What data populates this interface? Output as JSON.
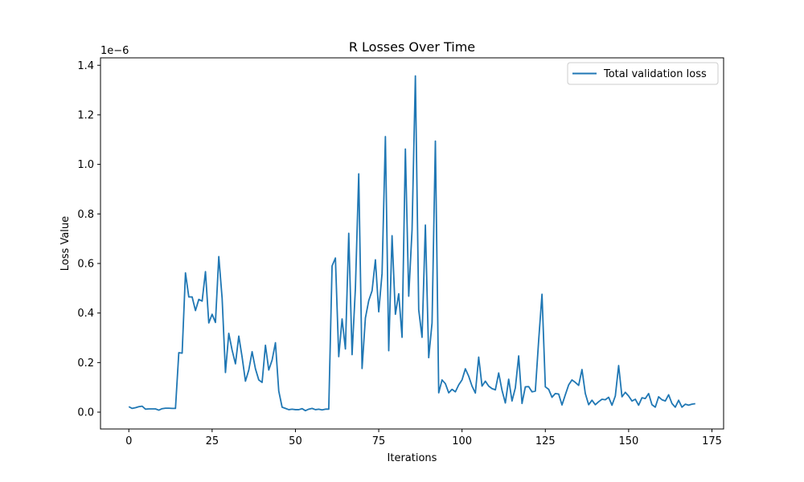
{
  "chart_data": {
    "type": "line",
    "title": "R Losses Over Time",
    "xlabel": "Iterations",
    "ylabel": "Loss Value",
    "y_offset_text": "1e−6",
    "xlim": [
      -8.5,
      178.5
    ],
    "ylim": [
      -0.068,
      1.43
    ],
    "xticks": [
      0,
      25,
      50,
      75,
      100,
      125,
      150,
      175
    ],
    "xtick_labels": [
      "0",
      "25",
      "50",
      "75",
      "100",
      "125",
      "150",
      "175"
    ],
    "yticks": [
      0.0,
      0.2,
      0.4,
      0.6,
      0.8,
      1.0,
      1.2,
      1.4
    ],
    "ytick_labels": [
      "0.0",
      "0.2",
      "0.4",
      "0.6",
      "0.8",
      "1.0",
      "1.2",
      "1.4"
    ],
    "grid": false,
    "legend_position": "top-right",
    "series": [
      {
        "name": "Total validation loss",
        "color": "#1f77b4",
        "x": [
          0,
          1,
          2,
          3,
          4,
          5,
          6,
          7,
          8,
          9,
          10,
          11,
          12,
          13,
          14,
          15,
          16,
          17,
          18,
          19,
          20,
          21,
          22,
          23,
          24,
          25,
          26,
          27,
          28,
          29,
          30,
          31,
          32,
          33,
          34,
          35,
          36,
          37,
          38,
          39,
          40,
          41,
          42,
          43,
          44,
          45,
          46,
          47,
          48,
          49,
          50,
          51,
          52,
          53,
          54,
          55,
          56,
          57,
          58,
          59,
          60,
          61,
          62,
          63,
          64,
          65,
          66,
          67,
          68,
          69,
          70,
          71,
          72,
          73,
          74,
          75,
          76,
          77,
          78,
          79,
          80,
          81,
          82,
          83,
          84,
          85,
          86,
          87,
          88,
          89,
          90,
          91,
          92,
          93,
          94,
          95,
          96,
          97,
          98,
          99,
          100,
          101,
          102,
          103,
          104,
          105,
          106,
          107,
          108,
          109,
          110,
          111,
          112,
          113,
          114,
          115,
          116,
          117,
          118,
          119,
          120,
          121,
          122,
          123,
          124,
          125,
          126,
          127,
          128,
          129,
          130,
          131,
          132,
          133,
          134,
          135,
          136,
          137,
          138,
          139,
          140,
          141,
          142,
          143,
          144,
          145,
          146,
          147,
          148,
          149,
          150,
          151,
          152,
          153,
          154,
          155,
          156,
          157,
          158,
          159,
          160,
          161,
          162,
          163,
          164,
          165,
          166,
          167,
          168,
          169,
          170
        ],
        "values": [
          0.022,
          0.015,
          0.018,
          0.022,
          0.024,
          0.012,
          0.013,
          0.013,
          0.013,
          0.008,
          0.014,
          0.016,
          0.016,
          0.015,
          0.015,
          0.24,
          0.238,
          0.562,
          0.465,
          0.465,
          0.41,
          0.455,
          0.448,
          0.567,
          0.36,
          0.395,
          0.362,
          0.628,
          0.46,
          0.16,
          0.318,
          0.25,
          0.195,
          0.307,
          0.222,
          0.125,
          0.17,
          0.244,
          0.175,
          0.13,
          0.12,
          0.27,
          0.17,
          0.21,
          0.28,
          0.085,
          0.02,
          0.015,
          0.01,
          0.012,
          0.01,
          0.01,
          0.014,
          0.006,
          0.012,
          0.015,
          0.01,
          0.012,
          0.009,
          0.012,
          0.012,
          0.59,
          0.622,
          0.224,
          0.376,
          0.255,
          0.722,
          0.232,
          0.5,
          0.962,
          0.176,
          0.38,
          0.45,
          0.49,
          0.615,
          0.405,
          0.56,
          1.112,
          0.248,
          0.712,
          0.395,
          0.478,
          0.302,
          1.062,
          0.468,
          0.735,
          1.357,
          0.413,
          0.302,
          0.755,
          0.22,
          0.36,
          1.094,
          0.078,
          0.13,
          0.115,
          0.078,
          0.092,
          0.082,
          0.11,
          0.13,
          0.175,
          0.145,
          0.105,
          0.077,
          0.222,
          0.105,
          0.125,
          0.105,
          0.095,
          0.09,
          0.158,
          0.088,
          0.037,
          0.133,
          0.045,
          0.098,
          0.227,
          0.035,
          0.102,
          0.103,
          0.082,
          0.085,
          0.29,
          0.476,
          0.102,
          0.092,
          0.06,
          0.075,
          0.073,
          0.029,
          0.07,
          0.11,
          0.13,
          0.12,
          0.108,
          0.172,
          0.075,
          0.03,
          0.048,
          0.03,
          0.042,
          0.052,
          0.05,
          0.06,
          0.028,
          0.065,
          0.188,
          0.062,
          0.08,
          0.065,
          0.045,
          0.052,
          0.028,
          0.058,
          0.055,
          0.075,
          0.03,
          0.02,
          0.062,
          0.05,
          0.045,
          0.07,
          0.035,
          0.02,
          0.048,
          0.02,
          0.032,
          0.028,
          0.032,
          0.034
        ]
      }
    ]
  }
}
